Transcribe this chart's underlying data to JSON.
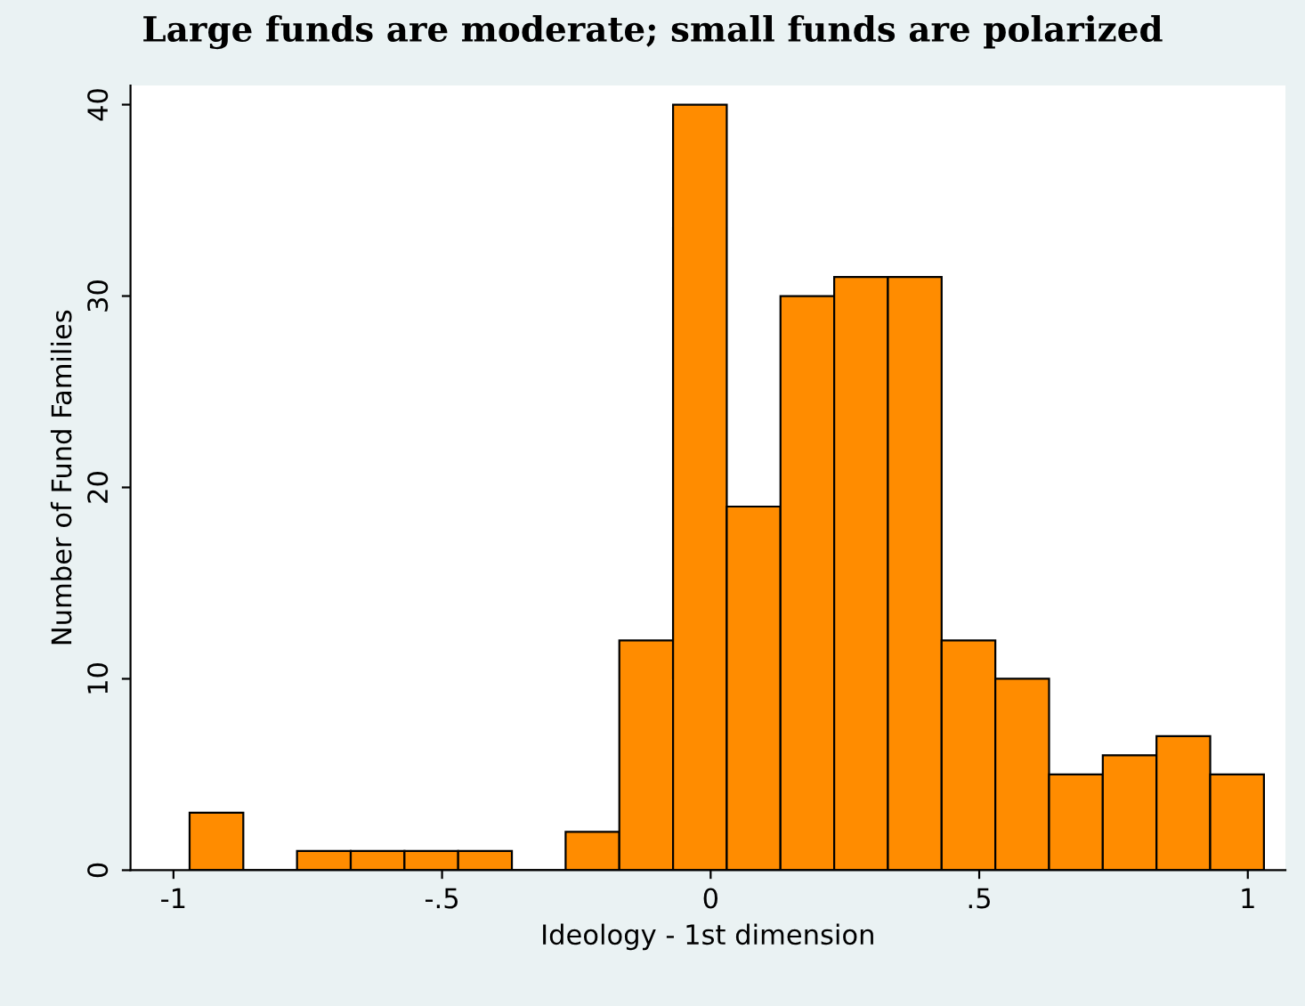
{
  "chart_data": {
    "type": "histogram",
    "title": "Large funds are moderate; small funds are polarized",
    "xlabel": "Ideology - 1st dimension",
    "ylabel": "Number of Fund Families",
    "bins": [
      -0.97,
      -0.87,
      -0.77,
      -0.67,
      -0.57,
      -0.47,
      -0.37,
      -0.27,
      -0.17,
      -0.07,
      0.03,
      0.13,
      0.23,
      0.33,
      0.43,
      0.53,
      0.63,
      0.73,
      0.83,
      0.93,
      1.03
    ],
    "values": [
      3,
      0,
      1,
      1,
      1,
      1,
      0,
      2,
      12,
      40,
      19,
      30,
      31,
      31,
      12,
      10,
      5,
      6,
      7,
      5
    ],
    "color": "#ff8c00",
    "xlim": [
      -1.08,
      1.07
    ],
    "ylim": [
      0,
      41
    ],
    "xticks": [
      -1,
      {
        "value": -0.5,
        "label": "-.5"
      },
      0,
      {
        "value": 0.5,
        "label": ".5"
      },
      1
    ],
    "yticks": [
      0,
      10,
      20,
      30,
      40
    ],
    "grid": false,
    "legend": false
  }
}
